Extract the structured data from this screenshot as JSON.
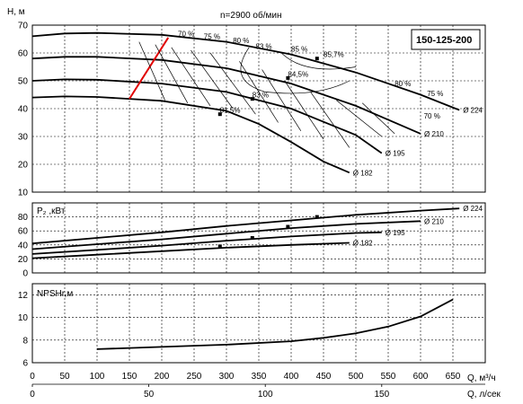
{
  "chart_data": [
    {
      "type": "line",
      "name": "head",
      "title": "n=2900 об/мин",
      "model": "150-125-200",
      "ylabel": "H, м",
      "ylim": [
        10,
        70
      ],
      "yticks": [
        10,
        20,
        30,
        40,
        50,
        60,
        70
      ],
      "xlim": [
        0,
        700
      ],
      "series": [
        {
          "name": "Ø 224",
          "x": [
            0,
            50,
            100,
            200,
            300,
            400,
            500,
            600,
            660
          ],
          "y": [
            66,
            67,
            67.2,
            66.5,
            64,
            59.5,
            53,
            45,
            39.5
          ]
        },
        {
          "name": "Ø 210",
          "x": [
            0,
            50,
            100,
            200,
            300,
            400,
            500,
            600
          ],
          "y": [
            58,
            58.6,
            58.6,
            57.5,
            54.5,
            49,
            41,
            31
          ]
        },
        {
          "name": "Ø 195",
          "x": [
            0,
            50,
            100,
            200,
            300,
            400,
            500,
            540
          ],
          "y": [
            50,
            50.5,
            50.4,
            49,
            46,
            40,
            30.5,
            24
          ]
        },
        {
          "name": "Ø 182",
          "x": [
            0,
            50,
            100,
            200,
            300,
            350,
            400,
            450,
            490
          ],
          "y": [
            44,
            44.4,
            44.2,
            42.8,
            39.2,
            34.5,
            28,
            21,
            17
          ]
        }
      ],
      "efficiency_labels": [
        "70 %",
        "75 %",
        "80 %",
        "83 %",
        "85 %",
        "85,7%",
        "84,5%",
        "83 %",
        "81,5%",
        "80 %",
        "75 %",
        "70 %"
      ],
      "operating_points": [
        [
          440,
          58
        ],
        [
          395,
          51
        ],
        [
          340,
          43.5
        ],
        [
          290,
          38
        ]
      ],
      "limit_line": [
        [
          150,
          43.5
        ],
        [
          210,
          65.5
        ]
      ]
    },
    {
      "type": "line",
      "name": "power",
      "ylabel": "P₂ ,кВт",
      "ylim": [
        0,
        100
      ],
      "yticks": [
        0,
        20,
        40,
        60,
        80
      ],
      "series": [
        {
          "name": "Ø 224",
          "x": [
            0,
            100,
            200,
            300,
            400,
            500,
            600,
            660
          ],
          "y": [
            42,
            50,
            58,
            67,
            75,
            83,
            89,
            92
          ]
        },
        {
          "name": "Ø 210",
          "x": [
            0,
            100,
            200,
            300,
            400,
            500,
            600
          ],
          "y": [
            34,
            41,
            48,
            56,
            64,
            70,
            74
          ]
        },
        {
          "name": "Ø 195",
          "x": [
            0,
            100,
            200,
            300,
            400,
            500,
            540
          ],
          "y": [
            27,
            33,
            39,
            46,
            52,
            57,
            58
          ]
        },
        {
          "name": "Ø 182",
          "x": [
            0,
            100,
            200,
            300,
            400,
            490
          ],
          "y": [
            21,
            26,
            31,
            36,
            40,
            43
          ]
        }
      ],
      "operating_points": [
        [
          440,
          80
        ],
        [
          395,
          66
        ],
        [
          340,
          50
        ],
        [
          290,
          38
        ]
      ]
    },
    {
      "type": "line",
      "name": "npsh",
      "ylabel": "NPSHr,м",
      "ylim": [
        6,
        13
      ],
      "yticks": [
        6,
        8,
        10,
        12
      ],
      "series": [
        {
          "name": "NPSHr",
          "x": [
            100,
            200,
            300,
            400,
            450,
            500,
            550,
            600,
            650
          ],
          "y": [
            7.2,
            7.4,
            7.6,
            7.9,
            8.2,
            8.6,
            9.2,
            10.1,
            11.6
          ]
        }
      ]
    }
  ],
  "axes": {
    "x_m3h": {
      "label": "Q, м³/ч",
      "ticks": [
        0,
        50,
        100,
        150,
        200,
        250,
        300,
        350,
        400,
        450,
        500,
        550,
        600,
        650
      ]
    },
    "x_ls": {
      "label": "Q, л/сек",
      "ticks": [
        0,
        50,
        100,
        150
      ]
    }
  }
}
